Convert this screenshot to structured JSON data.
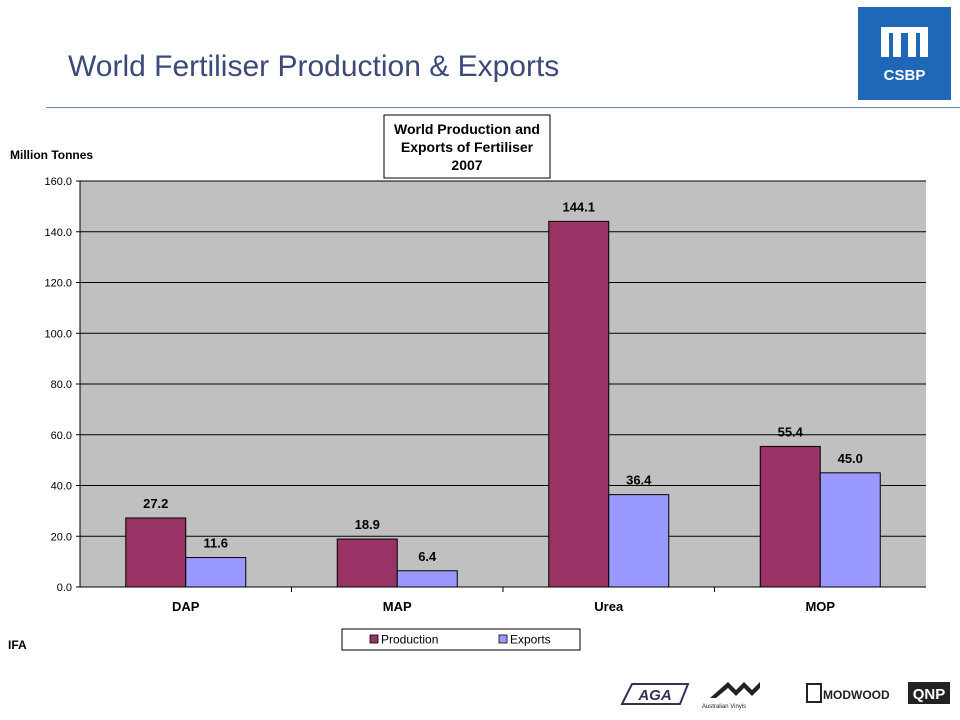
{
  "slide": {
    "title": "World Fertiliser Production & Exports",
    "source": "IFA",
    "colors": {
      "title": "#3b4a7a",
      "brand": "#1f68b8",
      "rule": "#6f86a8"
    }
  },
  "brand_logo": {
    "text": "CSBP",
    "icon": "csbp-logo"
  },
  "footer_logos": [
    {
      "name": "aga-logo",
      "text": "AGA"
    },
    {
      "name": "australian-vinyls-logo",
      "text": "Australian Vinyls"
    },
    {
      "name": "modwood-logo",
      "text": "MODWOOD"
    },
    {
      "name": "qnp-logo",
      "text": "QNP"
    }
  ],
  "chart_data": {
    "type": "bar",
    "title_lines": [
      "World Production and",
      "Exports of Fertiliser",
      "2007"
    ],
    "ylabel": "Million Tonnes",
    "xlabel": "",
    "categories": [
      "DAP",
      "MAP",
      "Urea",
      "MOP"
    ],
    "series": [
      {
        "name": "Production",
        "values": [
          27.2,
          18.9,
          144.1,
          55.4
        ],
        "labels": [
          "27.2",
          "18.9",
          "144.1",
          "55.4"
        ],
        "color": "#993366"
      },
      {
        "name": "Exports",
        "values": [
          11.6,
          6.4,
          36.4,
          45.0
        ],
        "labels": [
          "11.6",
          "6.4",
          "36.4",
          "45.0"
        ],
        "color": "#9999ff"
      }
    ],
    "ylim": [
      0,
      160
    ],
    "yticks": [
      "0.0",
      "20.0",
      "40.0",
      "60.0",
      "80.0",
      "100.0",
      "120.0",
      "140.0",
      "160.0"
    ],
    "grid": true,
    "plot_background": "#c0c0c0",
    "legend_position": "bottom-center"
  }
}
